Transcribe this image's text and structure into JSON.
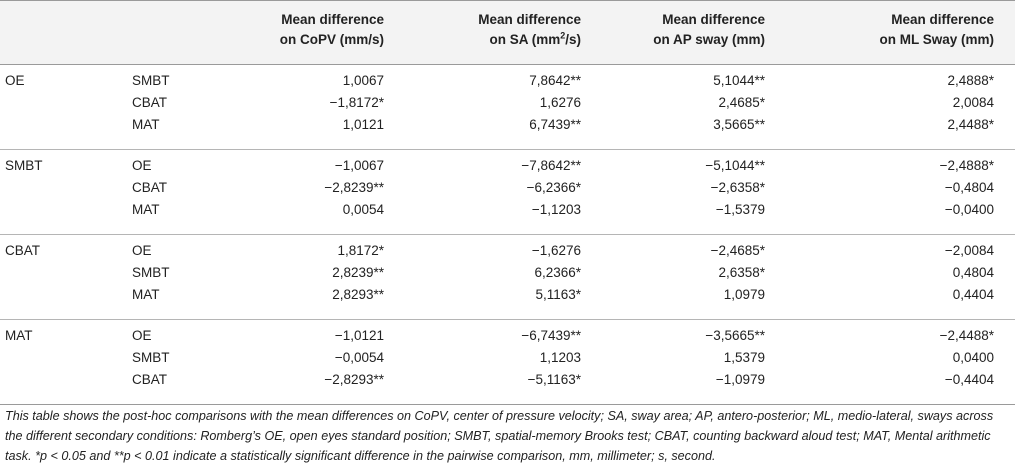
{
  "table": {
    "headers": [
      {
        "line1": "Mean difference",
        "line2": "on CoPV (mm/s)"
      },
      {
        "line1": "Mean difference",
        "line2_pre": "on SA (mm",
        "line2_sup": "2",
        "line2_post": "/s)"
      },
      {
        "line1": "Mean difference",
        "line2": "on AP sway (mm)"
      },
      {
        "line1": "Mean difference",
        "line2": "on ML Sway (mm)"
      }
    ],
    "groups": [
      {
        "label": "OE",
        "rows": [
          {
            "cmp": "SMBT",
            "copv": "1,0067",
            "sa": "7,8642**",
            "ap": "5,1044**",
            "ml": "2,4888*"
          },
          {
            "cmp": "CBAT",
            "copv": "−1,8172*",
            "sa": "1,6276",
            "ap": "2,4685*",
            "ml": "2,0084"
          },
          {
            "cmp": "MAT",
            "copv": "1,0121",
            "sa": "6,7439**",
            "ap": "3,5665**",
            "ml": "2,4488*"
          }
        ]
      },
      {
        "label": "SMBT",
        "rows": [
          {
            "cmp": "OE",
            "copv": "−1,0067",
            "sa": "−7,8642**",
            "ap": "−5,1044**",
            "ml": "−2,4888*"
          },
          {
            "cmp": "CBAT",
            "copv": "−2,8239**",
            "sa": "−6,2366*",
            "ap": "−2,6358*",
            "ml": "−0,4804"
          },
          {
            "cmp": "MAT",
            "copv": "0,0054",
            "sa": "−1,1203",
            "ap": "−1,5379",
            "ml": "−0,0400"
          }
        ]
      },
      {
        "label": "CBAT",
        "rows": [
          {
            "cmp": "OE",
            "copv": "1,8172*",
            "sa": "−1,6276",
            "ap": "−2,4685*",
            "ml": "−2,0084"
          },
          {
            "cmp": "SMBT",
            "copv": "2,8239**",
            "sa": "6,2366*",
            "ap": "2,6358*",
            "ml": "0,4804"
          },
          {
            "cmp": "MAT",
            "copv": "2,8293**",
            "sa": "5,1163*",
            "ap": "1,0979",
            "ml": "0,4404"
          }
        ]
      },
      {
        "label": "MAT",
        "rows": [
          {
            "cmp": "OE",
            "copv": "−1,0121",
            "sa": "−6,7439**",
            "ap": "−3,5665**",
            "ml": "−2,4488*"
          },
          {
            "cmp": "SMBT",
            "copv": "−0,0054",
            "sa": "1,1203",
            "ap": "1,5379",
            "ml": "0,0400"
          },
          {
            "cmp": "CBAT",
            "copv": "−2,8293**",
            "sa": "−5,1163*",
            "ap": "−1,0979",
            "ml": "−0,4404"
          }
        ]
      }
    ]
  },
  "caption": "This table shows the post-hoc comparisons with the mean differences on CoPV, center of pressure velocity; SA, sway area; AP, antero-posterior; ML, medio-lateral, sways across the different secondary conditions: Romberg’s OE, open eyes standard position; SMBT, spatial-memory Brooks test; CBAT, counting backward aloud test; MAT, Mental arithmetic task. *p < 0.05 and **p < 0.01 indicate a statistically significant difference in the pairwise comparison, mm, millimeter; s, second."
}
